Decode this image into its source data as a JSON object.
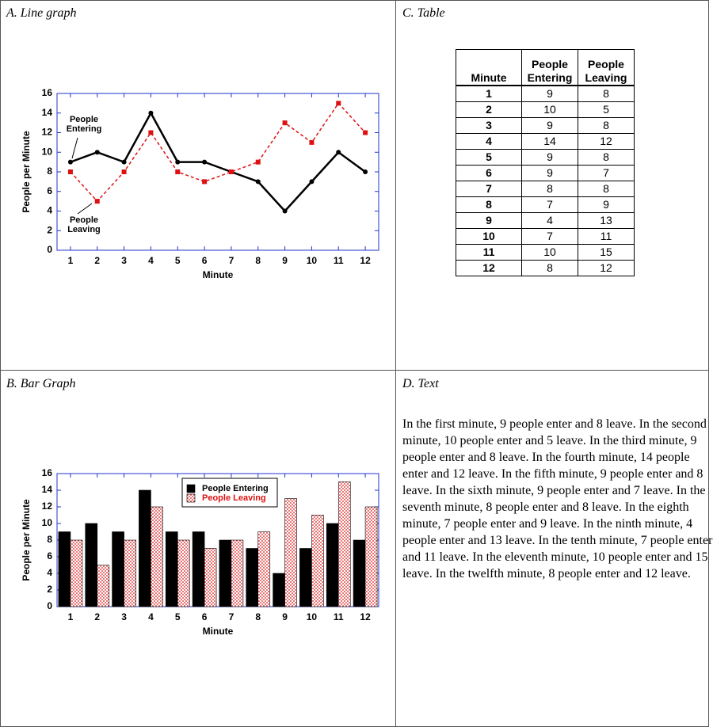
{
  "chart_data": [
    {
      "type": "line",
      "title": "A. Line graph",
      "x_label": "Minute",
      "y_label": "People per Minute",
      "categories": [
        "1",
        "2",
        "3",
        "4",
        "5",
        "6",
        "7",
        "8",
        "9",
        "10",
        "11",
        "12"
      ],
      "series": [
        {
          "name": "People Entering",
          "color": "#000000",
          "values": [
            9,
            10,
            9,
            14,
            9,
            9,
            8,
            7,
            4,
            7,
            10,
            8
          ]
        },
        {
          "name": "People Leaving",
          "color": "#dd1111",
          "values": [
            8,
            5,
            8,
            12,
            8,
            7,
            8,
            9,
            13,
            11,
            15,
            12
          ]
        }
      ],
      "ylim": [
        0,
        16
      ],
      "yticks": [
        0,
        2,
        4,
        6,
        8,
        10,
        12,
        14,
        16
      ],
      "legend": "annotations"
    },
    {
      "type": "bar",
      "title": "B. Bar Graph",
      "x_label": "Minute",
      "y_label": "People per Minute",
      "categories": [
        "1",
        "2",
        "3",
        "4",
        "5",
        "6",
        "7",
        "8",
        "9",
        "10",
        "11",
        "12"
      ],
      "series": [
        {
          "name": "People Entering",
          "color": "#000000",
          "values": [
            9,
            10,
            9,
            14,
            9,
            9,
            8,
            7,
            4,
            7,
            10,
            8
          ]
        },
        {
          "name": "People Leaving",
          "color": "#dd1111",
          "values": [
            8,
            5,
            8,
            12,
            8,
            7,
            8,
            9,
            13,
            11,
            15,
            12
          ]
        }
      ],
      "ylim": [
        0,
        16
      ],
      "yticks": [
        0,
        2,
        4,
        6,
        8,
        10,
        12,
        14,
        16
      ],
      "legend": "upper center"
    }
  ],
  "table": {
    "title": "C. Table",
    "header": [
      "Minute",
      "People Entering",
      "People Leaving"
    ],
    "rows": [
      [
        "1",
        "9",
        "8"
      ],
      [
        "2",
        "10",
        "5"
      ],
      [
        "3",
        "9",
        "8"
      ],
      [
        "4",
        "14",
        "12"
      ],
      [
        "5",
        "9",
        "8"
      ],
      [
        "6",
        "9",
        "7"
      ],
      [
        "7",
        "8",
        "8"
      ],
      [
        "8",
        "7",
        "9"
      ],
      [
        "9",
        "4",
        "13"
      ],
      [
        "10",
        "7",
        "11"
      ],
      [
        "11",
        "10",
        "15"
      ],
      [
        "12",
        "8",
        "12"
      ]
    ]
  },
  "text": {
    "title": "D. Text",
    "body": "In the first minute, 9 people enter and 8 leave. In the second minute, 10 people enter and 5 leave. In the third minute, 9 people enter and 8 leave. In the fourth minute, 14 people enter and 12 leave. In the fifth minute, 9 people enter and 8 leave. In the sixth minute, 9 people enter and 7 leave. In the seventh minute, 8 people enter and 8 leave. In the eighth minute, 7 people enter and 9 leave. In the ninth minute, 4 people enter and 13 leave. In the tenth minute, 7 people enter and 11 leave. In the eleventh minute, 10 people enter and 15 leave. In the twelfth minute, 8 people enter and 12 leave."
  }
}
